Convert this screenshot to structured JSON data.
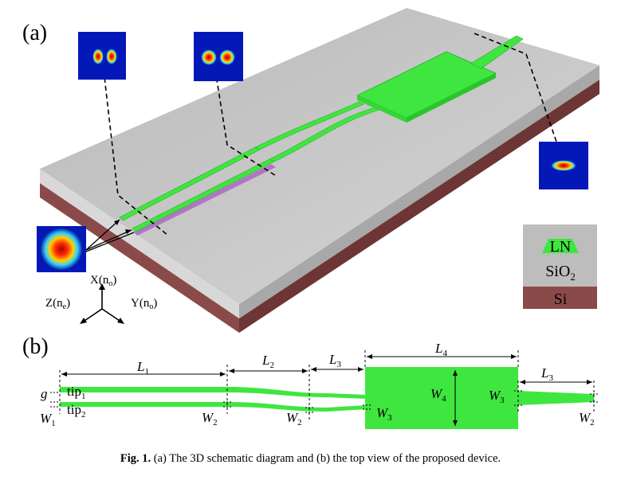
{
  "panel_a": {
    "label": "(a)",
    "axes": {
      "x": "X(n",
      "x_sub": "o",
      "y": "Y(n",
      "y_sub": "o",
      "z": "Z(n",
      "z_sub": "e",
      "close": ")"
    },
    "legend": {
      "ln": "LN",
      "sio2_main": "SiO",
      "sio2_sub": "2",
      "si": "Si"
    },
    "colors": {
      "waveguide": "#3fe63f",
      "substrate_top": "#c9c9c9",
      "si_layer": "#8b4a4a",
      "sio2": "#bdbdbd"
    }
  },
  "panel_b": {
    "label": "(b)",
    "L1": "L",
    "L1_sub": "1",
    "L2": "L",
    "L2_sub": "2",
    "L3": "L",
    "L3_sub": "3",
    "L4": "L",
    "L4_sub": "4",
    "L3b": "L",
    "L3b_sub": "3",
    "g": "g",
    "W1": "W",
    "W1_sub": "1",
    "tip1": "tip",
    "tip1_sub": "1",
    "tip2": "tip",
    "tip2_sub": "2",
    "W2a": "W",
    "W2a_sub": "2",
    "W2b": "W",
    "W2b_sub": "2",
    "W2c": "W",
    "W2c_sub": "2",
    "W3a": "W",
    "W3a_sub": "3",
    "W3b": "W",
    "W3b_sub": "3",
    "W4": "W",
    "W4_sub": "4"
  },
  "caption": {
    "prefix": "Fig. 1.",
    "text": "(a) The 3D schematic diagram and (b) the top view of the proposed device."
  }
}
